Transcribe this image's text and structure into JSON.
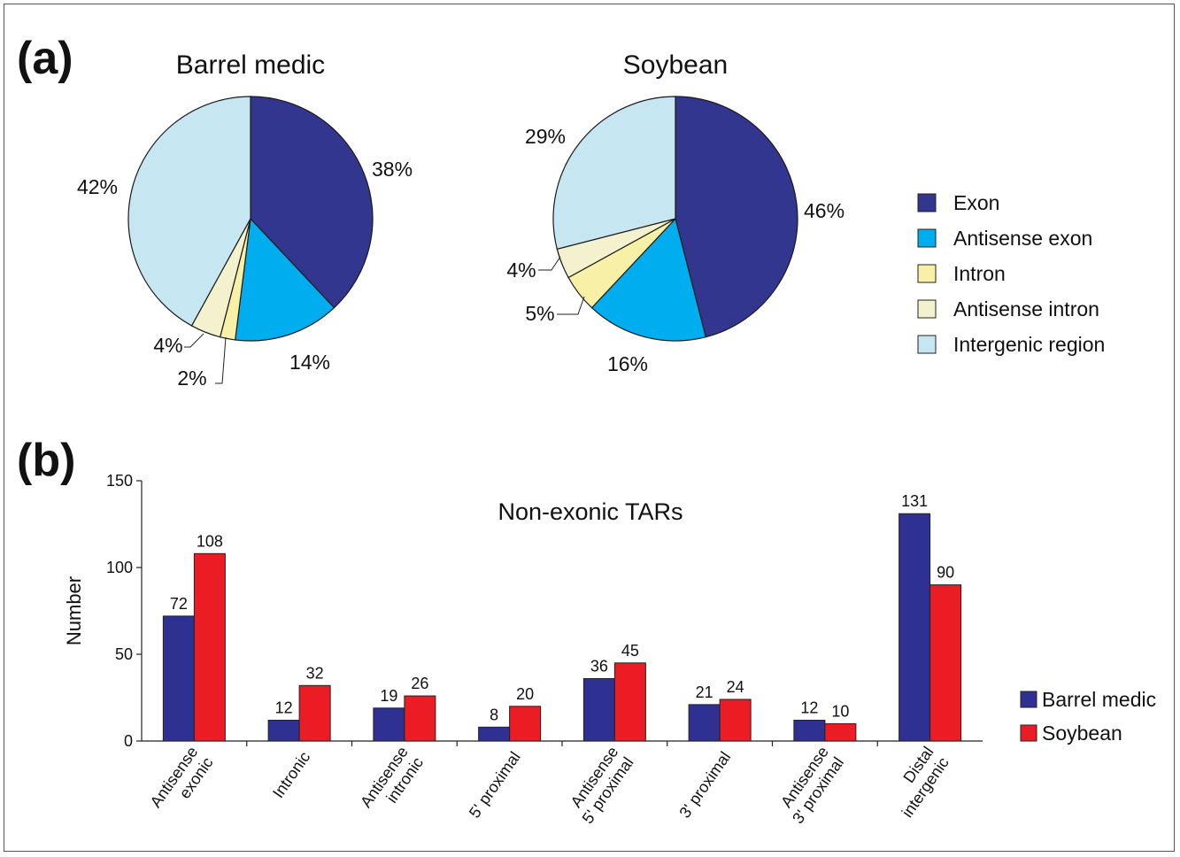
{
  "panel_labels": {
    "a": "(a)",
    "b": "(b)"
  },
  "colors": {
    "exon": "#32368f",
    "antisense_exon": "#00aeef",
    "intron": "#f7f0a6",
    "antisense_intron": "#f4f1cf",
    "intergenic": "#c6e7f2",
    "barrel_medic": "#2e3192",
    "soybean": "#ec1c24"
  },
  "legend_a": [
    {
      "label": "Exon",
      "color": "#32368f"
    },
    {
      "label": "Antisense exon",
      "color": "#00aeef"
    },
    {
      "label": "Intron",
      "color": "#f7f0a6"
    },
    {
      "label": "Antisense intron",
      "color": "#f4f1cf"
    },
    {
      "label": "Intergenic region",
      "color": "#c6e7f2"
    }
  ],
  "legend_b": [
    {
      "label": "Barrel medic",
      "color": "#2e3192"
    },
    {
      "label": "Soybean",
      "color": "#ec1c24"
    }
  ],
  "chart_data": [
    {
      "type": "pie",
      "title": "Barrel medic",
      "categories": [
        "Exon",
        "Antisense exon",
        "Intron",
        "Antisense intron",
        "Intergenic region"
      ],
      "values": [
        38,
        14,
        2,
        4,
        42
      ],
      "labels": [
        "38%",
        "14%",
        "2%",
        "4%",
        "42%"
      ]
    },
    {
      "type": "pie",
      "title": "Soybean",
      "categories": [
        "Exon",
        "Antisense exon",
        "Intron",
        "Antisense intron",
        "Intergenic region"
      ],
      "values": [
        46,
        16,
        5,
        4,
        29
      ],
      "labels": [
        "46%",
        "16%",
        "5%",
        "4%",
        "29%"
      ]
    },
    {
      "type": "bar",
      "title": "Non-exonic TARs",
      "ylabel": "Number",
      "xlabel": "",
      "ylim": [
        0,
        150
      ],
      "yticks": [
        0,
        50,
        100,
        150
      ],
      "categories": [
        "Antisense\nexonic",
        "Intronic",
        "Antisense\nintronic",
        "5' proximal",
        "Antisense\n5' proximal",
        "3' proximal",
        "Antisense\n3' proximal",
        "Distal\nintergenic"
      ],
      "series": [
        {
          "name": "Barrel medic",
          "values": [
            72,
            12,
            19,
            8,
            36,
            21,
            12,
            131
          ]
        },
        {
          "name": "Soybean",
          "values": [
            108,
            32,
            26,
            20,
            45,
            24,
            10,
            90
          ]
        }
      ]
    }
  ]
}
